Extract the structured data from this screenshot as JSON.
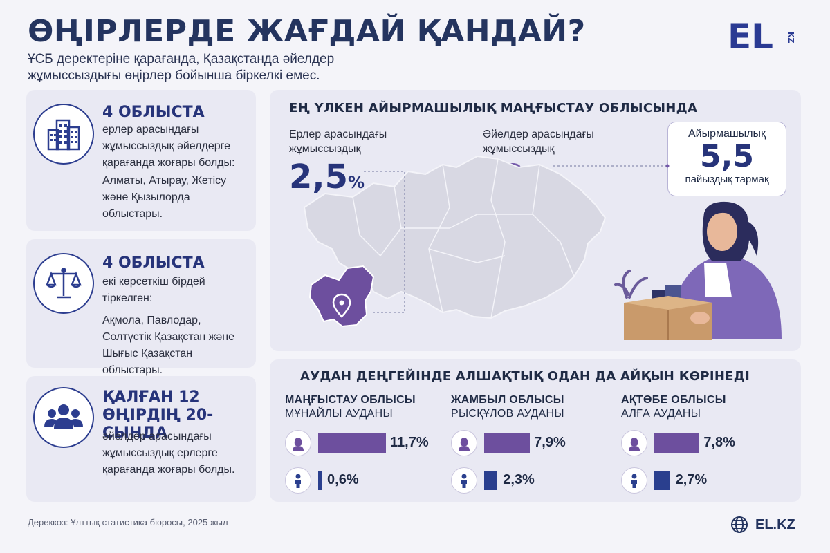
{
  "header": {
    "title": "ӨҢІРЛЕРДЕ ЖАҒДАЙ ҚАНДАЙ?",
    "subtitle": "ҰСБ деректеріне қарағанда, Қазақстанда әйелдер жұмыссыздығы өңірлер бойынша біркелкі емес.",
    "logo_main": "EL",
    "logo_sub": "KZ"
  },
  "left_cards": [
    {
      "icon": "buildings-icon",
      "head": "4 ОБЛЫСТА",
      "text": "ерлер арасындағы жұмыссыздық әйелдерге қарағанда жоғары болды:",
      "list": "Алматы, Атырау, Жетісу және Қызылорда облыстары."
    },
    {
      "icon": "scales-icon",
      "head": "4 ОБЛЫСТА",
      "text": "екі көрсеткіш бірдей тіркелген:",
      "list": "Ақмола, Павлодар, Солтүстік Қазақстан және Шығыс Қазақстан облыстары."
    },
    {
      "icon": "people-group-icon",
      "head": "ҚАЛҒАН 12 ӨҢІРДІҢ 20-СЫНДА",
      "text": "әйелдер арасындағы жұмыссыздық ерлерге қарағанда жоғары болды."
    }
  ],
  "map_section": {
    "heading": "ЕҢ ҮЛКЕН АЙЫРМАШЫЛЫҚ МАҢҒЫСТАУ ОБЛЫСЫНДА",
    "men_label": "Ерлер арасындағы жұмыссыздық",
    "men_value": "2,5",
    "women_label": "Әйелдер арасындағы жұмыссыздық",
    "women_value": "8",
    "pct_sign": "%",
    "diff_label": "Айырмашылық",
    "diff_value": "5,5",
    "diff_unit": "пайыздық тармақ"
  },
  "district_section": {
    "heading": "АУДАН ДЕҢГЕЙІНДЕ АЛШАҚТЫҚ ОДАН ДА АЙҚЫН КӨРІНЕДІ",
    "columns": [
      {
        "region": "МАҢҒЫСТАУ ОБЛЫСЫ",
        "district": "МҰНАЙЛЫ АУДАНЫ",
        "women": 11.7,
        "women_label": "11,7%",
        "men": 0.6,
        "men_label": "0,6%"
      },
      {
        "region": "ЖАМБЫЛ ОБЛЫСЫ",
        "district": "РЫСҚҰЛОВ АУДАНЫ",
        "women": 7.9,
        "women_label": "7,9%",
        "men": 2.3,
        "men_label": "2,3%"
      },
      {
        "region": "АҚТӨБЕ ОБЛЫСЫ",
        "district": "АЛҒА АУДАНЫ",
        "women": 7.8,
        "women_label": "7,8%",
        "men": 2.7,
        "men_label": "2,7%"
      }
    ]
  },
  "colors": {
    "navy": "#27347a",
    "purple": "#7257a8",
    "bar_women": "#6d4f9e",
    "bar_men": "#2a3f8e",
    "map_gray": "#d8d8e3"
  },
  "footer": {
    "source": "Дереккөз: Ұлттық статистика бюросы, 2025 жыл",
    "site": "EL.KZ"
  }
}
